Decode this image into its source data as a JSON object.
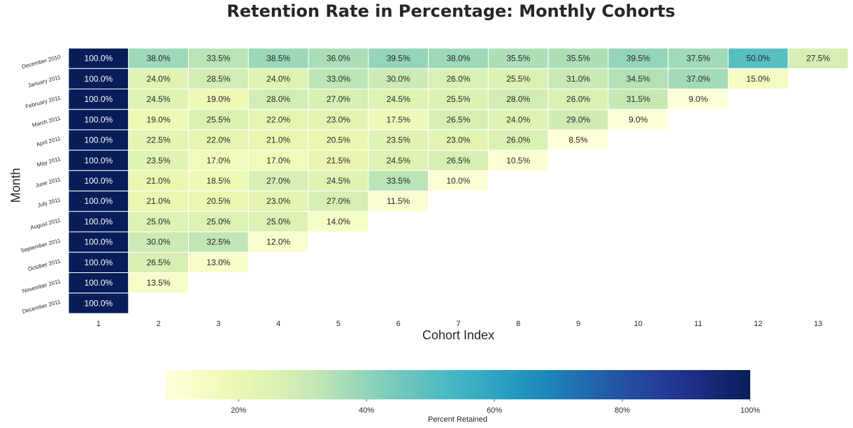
{
  "chart_data": {
    "type": "heatmap",
    "title": "Retention Rate in Percentage: Monthly Cohorts",
    "xlabel": "Cohort Index",
    "ylabel": "Month",
    "x": [
      "1",
      "2",
      "3",
      "4",
      "5",
      "6",
      "7",
      "8",
      "9",
      "10",
      "11",
      "12",
      "13"
    ],
    "y": [
      "December 2010",
      "January 2011",
      "February 2011",
      "March 2011",
      "April 2011",
      "May 2011",
      "June 2011",
      "July 2011",
      "August 2011",
      "September 2011",
      "October 2011",
      "November 2011",
      "December 2011"
    ],
    "values": [
      [
        100.0,
        38.0,
        33.5,
        38.5,
        36.0,
        39.5,
        38.0,
        35.5,
        35.5,
        39.5,
        37.5,
        50.0,
        27.5
      ],
      [
        100.0,
        24.0,
        28.5,
        24.0,
        33.0,
        30.0,
        26.0,
        25.5,
        31.0,
        34.5,
        37.0,
        15.0
      ],
      [
        100.0,
        24.5,
        19.0,
        28.0,
        27.0,
        24.5,
        25.5,
        28.0,
        26.0,
        31.5,
        9.0
      ],
      [
        100.0,
        19.0,
        25.5,
        22.0,
        23.0,
        17.5,
        26.5,
        24.0,
        29.0,
        9.0
      ],
      [
        100.0,
        22.5,
        22.0,
        21.0,
        20.5,
        23.5,
        23.0,
        26.0,
        8.5
      ],
      [
        100.0,
        23.5,
        17.0,
        17.0,
        21.5,
        24.5,
        26.5,
        10.5
      ],
      [
        100.0,
        21.0,
        18.5,
        27.0,
        24.5,
        33.5,
        10.0
      ],
      [
        100.0,
        21.0,
        20.5,
        23.0,
        27.0,
        11.5
      ],
      [
        100.0,
        25.0,
        25.0,
        25.0,
        14.0
      ],
      [
        100.0,
        30.0,
        32.5,
        12.0
      ],
      [
        100.0,
        26.5,
        13.0
      ],
      [
        100.0,
        13.5
      ],
      [
        100.0
      ]
    ],
    "value_format": "percent_one_decimal",
    "colormap": "YlGnBu",
    "colorbar": {
      "label": "Percent Retained",
      "range": [
        8.5,
        100
      ],
      "ticks": [
        "20%",
        "40%",
        "60%",
        "80%",
        "100%"
      ],
      "tick_values": [
        20,
        40,
        60,
        80,
        100
      ],
      "orientation": "horizontal",
      "placement": "bottom"
    },
    "grid": false,
    "colors": {
      "low": "#ffffd9",
      "mid": "#41b6c4",
      "high": "#081d58",
      "text_dark": "#262626",
      "text_light": "#ffffff"
    }
  }
}
